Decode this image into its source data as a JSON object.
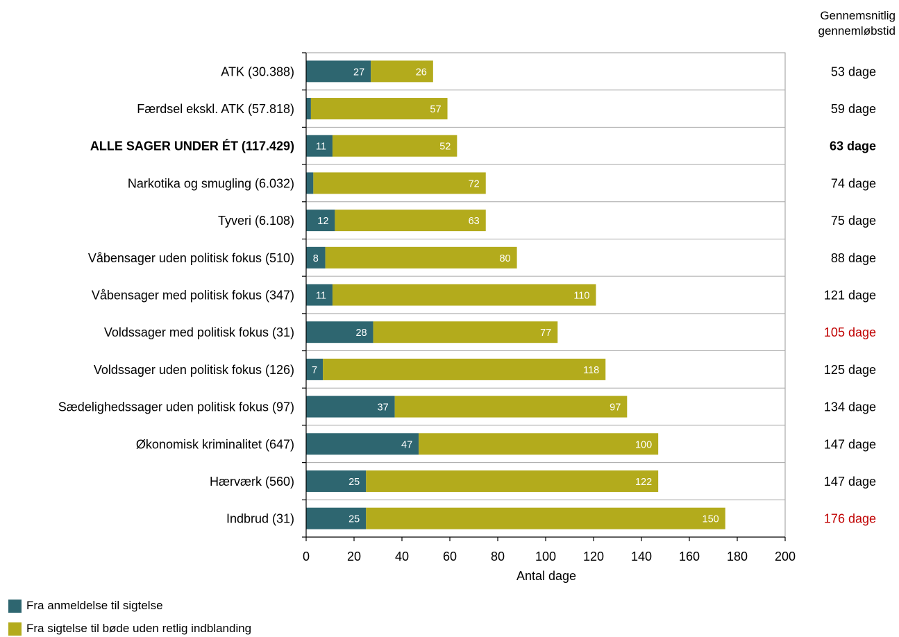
{
  "chart_data": {
    "type": "bar",
    "orientation": "horizontal",
    "stacked": true,
    "categories": [
      "ATK (30.388)",
      "Færdsel ekskl. ATK (57.818)",
      "ALLE SAGER UNDER ÉT (117.429)",
      "Narkotika og smugling (6.032)",
      "Tyveri (6.108)",
      "Våbensager uden politisk fokus (510)",
      "Våbensager med politisk fokus (347)",
      "Voldssager med politisk fokus (31)",
      "Voldssager uden politisk fokus (126)",
      "Sædelighedssager uden politisk fokus (97)",
      "Økonomisk kriminalitet (647)",
      "Hærværk (560)",
      "Indbrud (31)"
    ],
    "bold_categories": [
      "ALLE SAGER UNDER ÉT (117.429)"
    ],
    "series": [
      {
        "name": "Fra anmeldelse til sigtelse",
        "color": "#2e6670",
        "values": [
          27,
          2,
          11,
          3,
          12,
          8,
          11,
          28,
          7,
          37,
          47,
          25,
          25
        ],
        "labels": [
          "27",
          "",
          "11",
          "",
          "12",
          "8",
          "11",
          "28",
          "7",
          "37",
          "47",
          "25",
          "25"
        ]
      },
      {
        "name": "Fra sigtelse til bøde uden retlig indblanding",
        "color": "#b3ab1c",
        "values": [
          26,
          57,
          52,
          72,
          63,
          80,
          110,
          77,
          118,
          97,
          100,
          122,
          150
        ],
        "labels": [
          "26",
          "57",
          "52",
          "72",
          "63",
          "80",
          "110",
          "77",
          "118",
          "97",
          "100",
          "122",
          "150"
        ]
      }
    ],
    "right_header": [
      "Gennemsnitlig",
      "gennemløbstid"
    ],
    "totals": [
      {
        "text": "53 dage",
        "color": "#000000",
        "bold": false
      },
      {
        "text": "59 dage",
        "color": "#000000",
        "bold": false
      },
      {
        "text": "63 dage",
        "color": "#000000",
        "bold": true
      },
      {
        "text": "74 dage",
        "color": "#000000",
        "bold": false
      },
      {
        "text": "75 dage",
        "color": "#000000",
        "bold": false
      },
      {
        "text": "88 dage",
        "color": "#000000",
        "bold": false
      },
      {
        "text": "121 dage",
        "color": "#000000",
        "bold": false
      },
      {
        "text": "105 dage",
        "color": "#c00000",
        "bold": false
      },
      {
        "text": "125 dage",
        "color": "#000000",
        "bold": false
      },
      {
        "text": "134 dage",
        "color": "#000000",
        "bold": false
      },
      {
        "text": "147 dage",
        "color": "#000000",
        "bold": false
      },
      {
        "text": "147 dage",
        "color": "#000000",
        "bold": false
      },
      {
        "text": "176 dage",
        "color": "#c00000",
        "bold": false
      }
    ],
    "xlabel": "Antal dage",
    "xlim": [
      0,
      200
    ],
    "xticks": [
      0,
      20,
      40,
      60,
      80,
      100,
      120,
      140,
      160,
      180,
      200
    ],
    "grid": "horizontal separators",
    "legend_position": "bottom-left"
  }
}
